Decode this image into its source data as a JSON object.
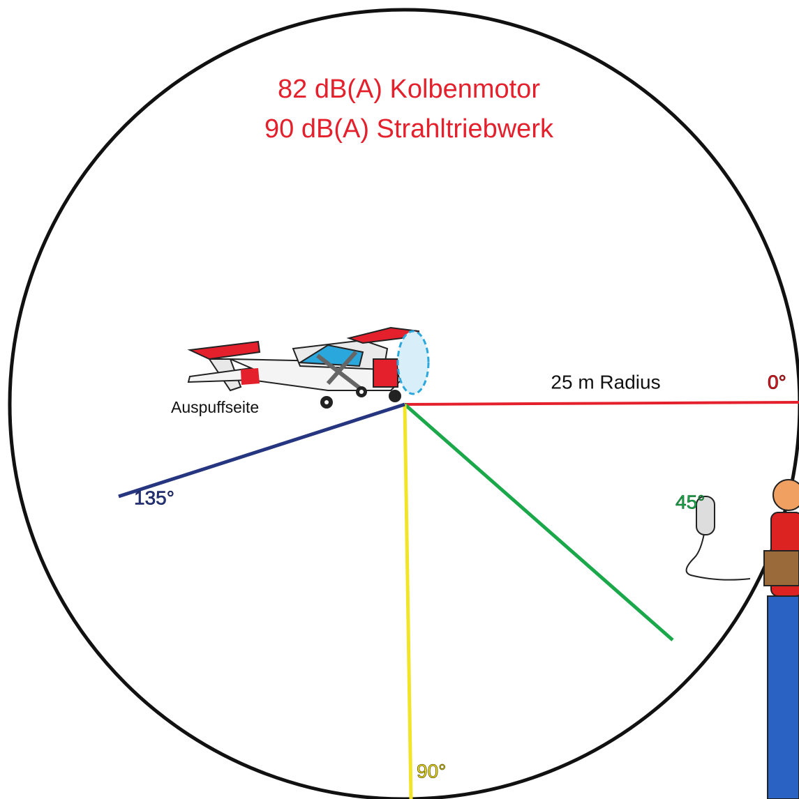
{
  "title": {
    "line1": "82 dB(A) Kolbenmotor",
    "line2": "90 dB(A) Strahltriebwerk"
  },
  "radius_label": "25 m Radius",
  "angles": {
    "a0": "0°",
    "a45": "45°",
    "a90": "90°",
    "a135": "135°"
  },
  "exhaust_label": "Auspuffseite"
}
